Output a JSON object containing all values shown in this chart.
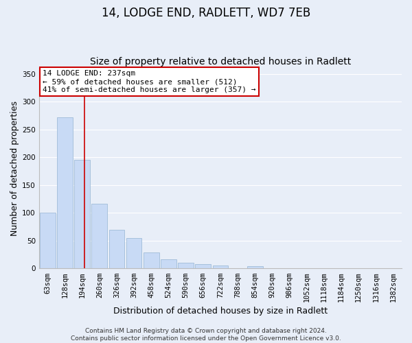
{
  "title": "14, LODGE END, RADLETT, WD7 7EB",
  "subtitle": "Size of property relative to detached houses in Radlett",
  "xlabel": "Distribution of detached houses by size in Radlett",
  "ylabel": "Number of detached properties",
  "bar_labels": [
    "63sqm",
    "128sqm",
    "194sqm",
    "260sqm",
    "326sqm",
    "392sqm",
    "458sqm",
    "524sqm",
    "590sqm",
    "656sqm",
    "722sqm",
    "788sqm",
    "854sqm",
    "920sqm",
    "986sqm",
    "1052sqm",
    "1118sqm",
    "1184sqm",
    "1250sqm",
    "1316sqm",
    "1382sqm"
  ],
  "bar_values": [
    100,
    272,
    195,
    116,
    69,
    55,
    29,
    17,
    11,
    8,
    5,
    0,
    4,
    0,
    1,
    0,
    1,
    0,
    0,
    1,
    0
  ],
  "bar_color": "#c8daf5",
  "bar_edge_color": "#a0bcd8",
  "vline_x": 2.15,
  "vline_color": "#cc0000",
  "annotation_text": "14 LODGE END: 237sqm\n← 59% of detached houses are smaller (512)\n41% of semi-detached houses are larger (357) →",
  "annotation_box_color": "#ffffff",
  "annotation_box_edge": "#cc0000",
  "ylim": [
    0,
    360
  ],
  "yticks": [
    0,
    50,
    100,
    150,
    200,
    250,
    300,
    350
  ],
  "footer_text": "Contains HM Land Registry data © Crown copyright and database right 2024.\nContains public sector information licensed under the Open Government Licence v3.0.",
  "background_color": "#e8eef8",
  "plot_bg_color": "#e8eef8",
  "title_fontsize": 12,
  "subtitle_fontsize": 10,
  "axis_label_fontsize": 9,
  "tick_fontsize": 7.5,
  "footer_fontsize": 6.5
}
